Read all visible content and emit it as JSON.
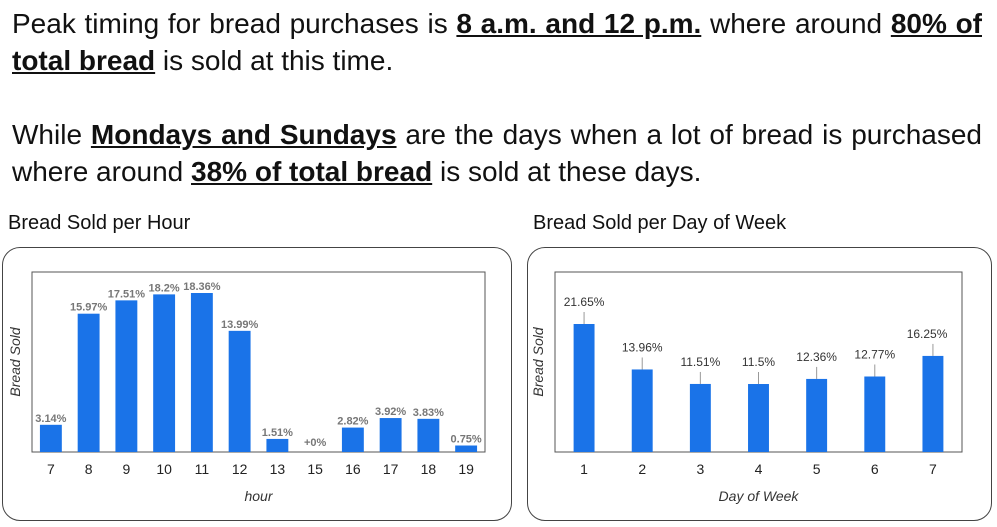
{
  "text": {
    "p1_a": "Peak timing for bread purchases is ",
    "p1_b": "8 a.m. and 12 p.m.",
    "p1_c": " where around ",
    "p1_d": "80% of total bread",
    "p1_e": " is sold at this time.",
    "p2_a": "While ",
    "p2_b": "Mondays and Sundays",
    "p2_c": " are the days when a lot of bread is purchased where around ",
    "p2_d": "38% of total bread",
    "p2_e": " is sold at these days."
  },
  "colors": {
    "bar": "#1a73e8"
  },
  "chart_data": [
    {
      "type": "bar",
      "title": "Bread Sold per Hour",
      "xlabel": "hour",
      "ylabel": "Bread Sold",
      "ylim": [
        0,
        18.36
      ],
      "categories": [
        "7",
        "8",
        "9",
        "10",
        "11",
        "12",
        "13",
        "15",
        "16",
        "17",
        "18",
        "19"
      ],
      "values": [
        3.14,
        15.97,
        17.51,
        18.2,
        18.36,
        13.99,
        1.51,
        0,
        2.82,
        3.92,
        3.83,
        0.75
      ],
      "labels": [
        "3.14%",
        "15.97%",
        "17.51%",
        "18.2%",
        "18.36%",
        "13.99%",
        "1.51%",
        "+0%",
        "2.82%",
        "3.92%",
        "3.83%",
        "0.75%"
      ],
      "grid": false
    },
    {
      "type": "bar",
      "title": "Bread Sold per Day of Week",
      "xlabel": "Day of Week",
      "ylabel": "Bread Sold",
      "ylim": [
        0,
        21.65
      ],
      "categories": [
        "1",
        "2",
        "3",
        "4",
        "5",
        "6",
        "7"
      ],
      "values": [
        21.65,
        13.96,
        11.51,
        11.5,
        12.36,
        12.77,
        16.25
      ],
      "labels": [
        "21.65%",
        "13.96%",
        "11.51%",
        "11.5%",
        "12.36%",
        "12.77%",
        "16.25%"
      ],
      "grid": false
    }
  ]
}
